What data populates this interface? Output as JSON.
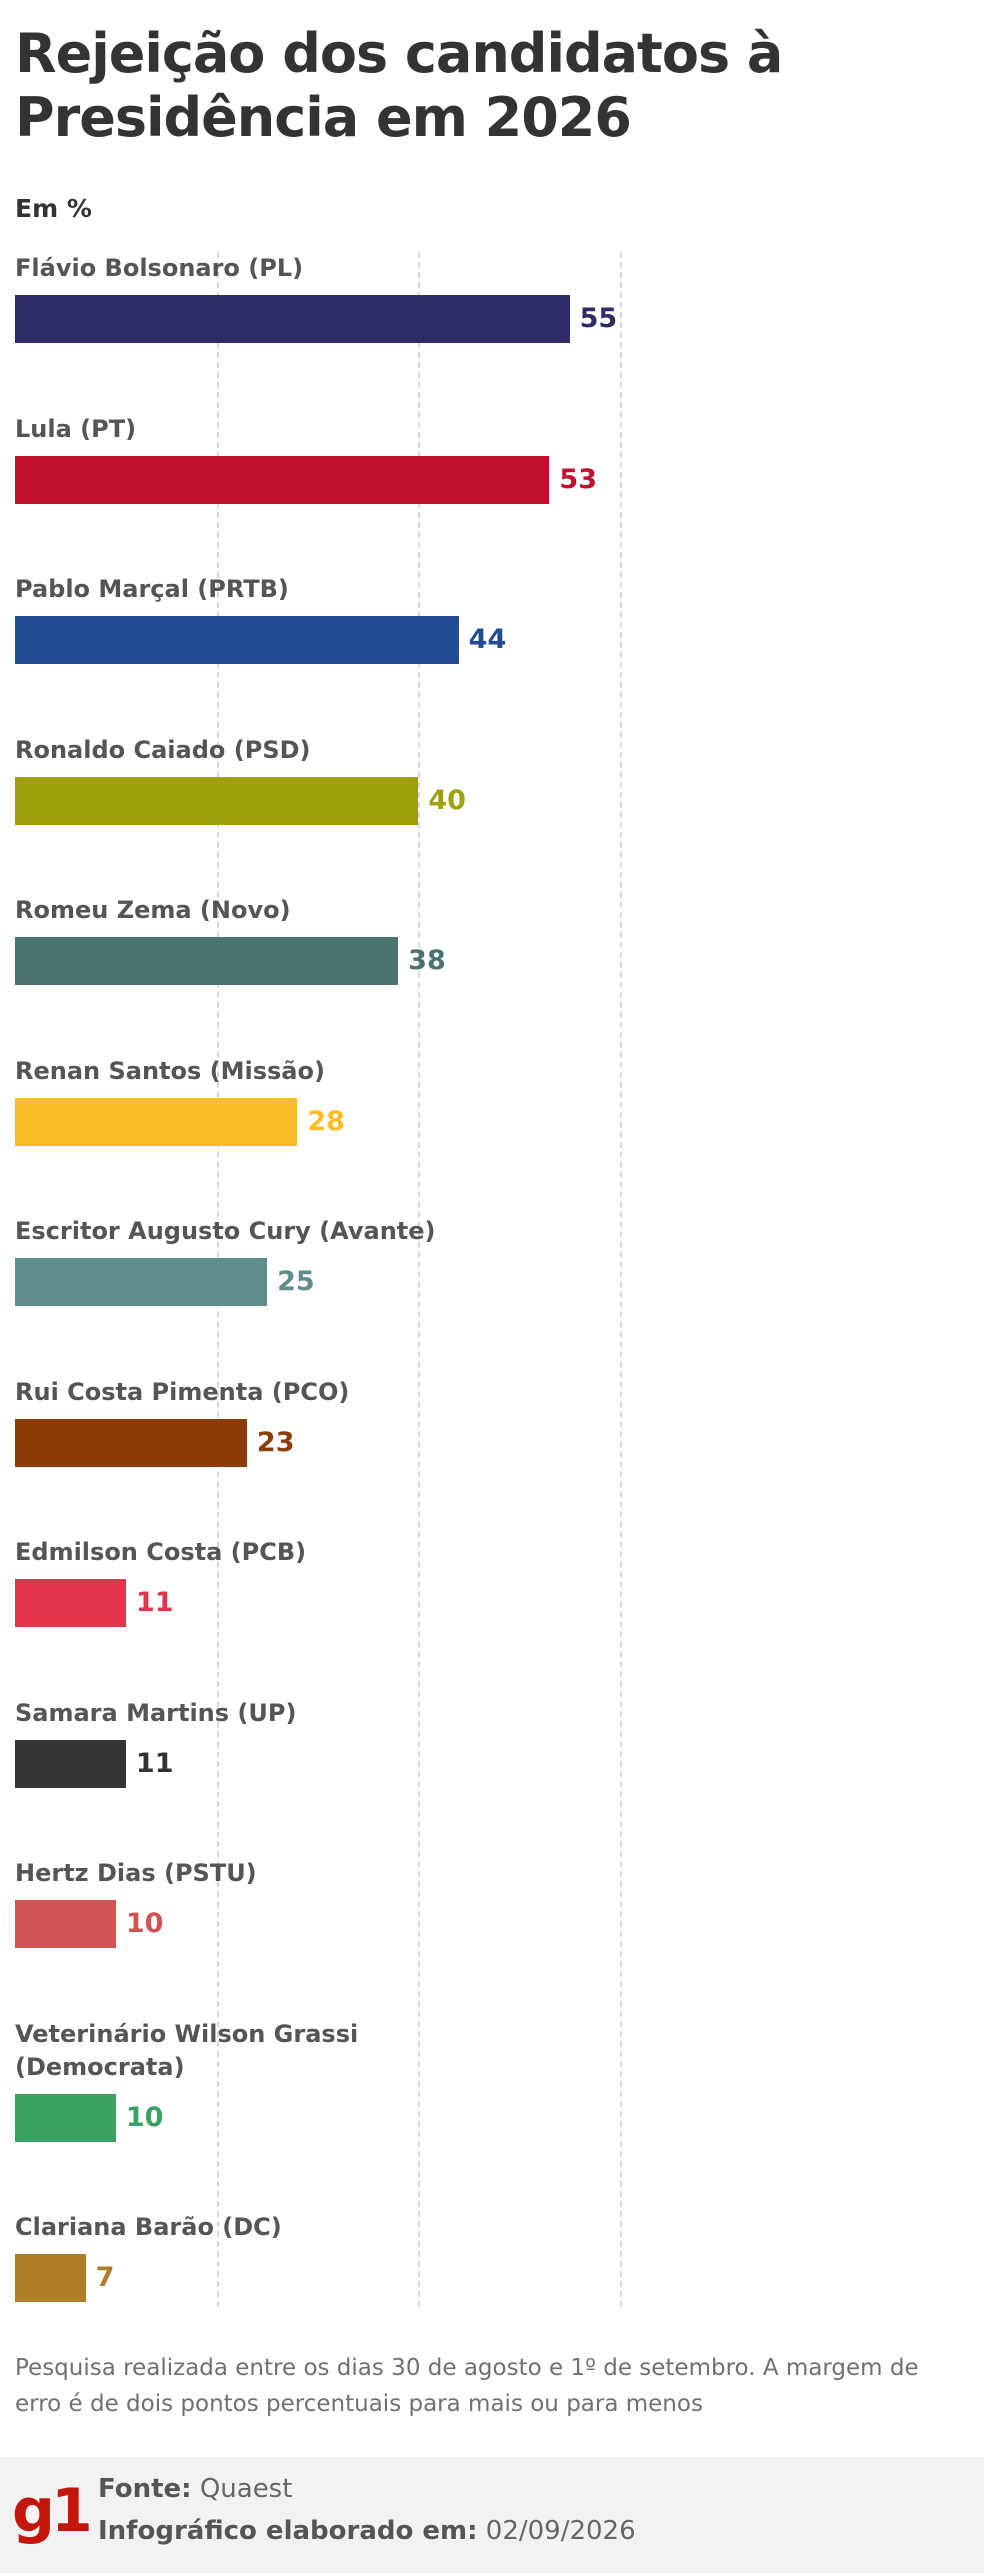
{
  "title": "Rejeição dos candidatos à Presidência em 2026",
  "unit_label": "Em %",
  "colors": {
    "text": "#333333",
    "label": "#555555",
    "grid": "#d9d9d9",
    "brand": "#c4170c",
    "footer_bg": "#f2f2f2"
  },
  "chart_data": {
    "type": "bar",
    "orientation": "horizontal",
    "categories": [
      "Flávio Bolsonaro (PL)",
      "Lula (PT)",
      "Pablo Marçal (PRTB)",
      "Ronaldo Caiado (PSD)",
      "Romeu Zema (Novo)",
      "Renan Santos (Missão)",
      "Escritor Augusto Cury (Avante)",
      "Rui Costa Pimenta (PCO)",
      "Edmilson Costa (PCB)",
      "Samara Martins (UP)",
      "Hertz Dias (PSTU)",
      "Veterinário Wilson Grassi\n(Democrata)",
      "Clariana Barão (DC)"
    ],
    "values": [
      55,
      53,
      44,
      40,
      38,
      28,
      25,
      23,
      11,
      11,
      10,
      10,
      7
    ],
    "bar_colors": [
      "#2e2c66",
      "#c2112f",
      "#234b91",
      "#a0a00a",
      "#4b7471",
      "#fbbd27",
      "#5f8d8b",
      "#8f3b06",
      "#e2344a",
      "#333333",
      "#d25353",
      "#39a260",
      "#ad7d27"
    ],
    "value_colors": [
      "#2e2c66",
      "#c2112f",
      "#234b91",
      "#a0a00a",
      "#4b7471",
      "#fbbd27",
      "#5f8d8b",
      "#8f3b06",
      "#e2344a",
      "#333333",
      "#d25353",
      "#39a260",
      "#ad7d27"
    ],
    "xlim": [
      0,
      60
    ],
    "grid": true,
    "legend": "none"
  },
  "note": "Pesquisa realizada entre os dias 30 de agosto e 1º de setembro. A margem de erro é de dois pontos percentuais para mais ou para menos",
  "footer": {
    "logo_text": "g1",
    "source_label": "Fonte:",
    "source_value": "Quaest",
    "date_label": "Infográfico elaborado em:",
    "date_value": "02/09/2026"
  }
}
